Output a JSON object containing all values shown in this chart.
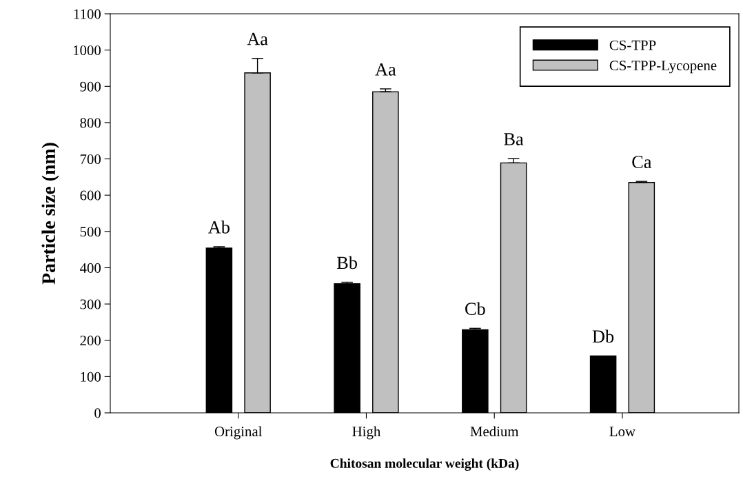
{
  "chart_data": {
    "type": "bar",
    "xlabel": "Chitosan molecular weight (kDa)",
    "ylabel": "Particle size (nm)",
    "categories": [
      "Original",
      "High",
      "Medium",
      "Low"
    ],
    "series": [
      {
        "name": "CS-TPP",
        "color": "#000000",
        "values": [
          454,
          356,
          229,
          157
        ],
        "errors": [
          4,
          4,
          4,
          null
        ]
      },
      {
        "name": "CS-TPP-Lycopene",
        "color": "#c0c0c0",
        "values": [
          937,
          885,
          689,
          635
        ],
        "errors": [
          40,
          8,
          12,
          3
        ]
      }
    ],
    "ylim": [
      0,
      1100
    ],
    "yticks": [
      0,
      100,
      200,
      300,
      400,
      500,
      600,
      700,
      800,
      900,
      1000,
      1100
    ],
    "annotations": [
      "Ab",
      "Aa",
      "Bb",
      "Aa",
      "Cb",
      "Ba",
      "Db",
      "Ca"
    ],
    "grid": false,
    "legend": "top right"
  }
}
